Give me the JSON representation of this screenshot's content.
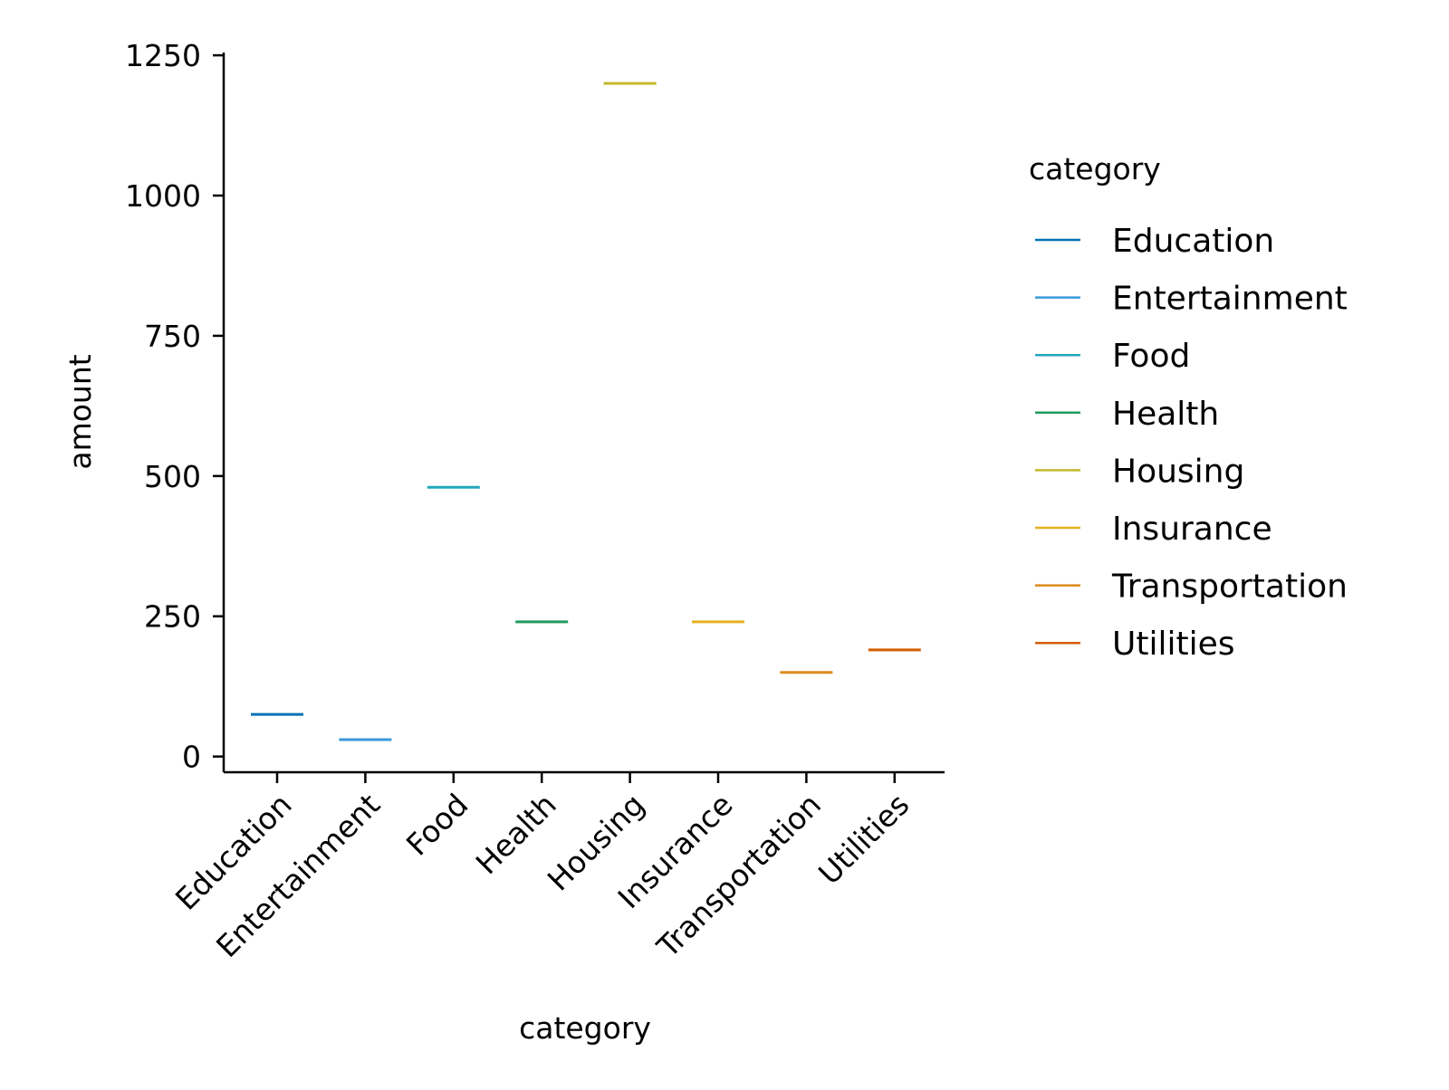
{
  "chart_data": {
    "type": "line",
    "title": "",
    "xlabel": "category",
    "ylabel": "amount",
    "categories": [
      "Education",
      "Entertainment",
      "Food",
      "Health",
      "Housing",
      "Insurance",
      "Transportation",
      "Utilities"
    ],
    "values": [
      75,
      30,
      480,
      240,
      1200,
      240,
      150,
      190
    ],
    "colors": [
      "#0072b2",
      "#3a9ad9",
      "#22a7bd",
      "#229a5e",
      "#c4b82c",
      "#e6b020",
      "#dd8a1e",
      "#d55e00"
    ],
    "ylim": [
      -28,
      1255
    ],
    "yticks": [
      0,
      250,
      500,
      750,
      1000,
      1250
    ],
    "grid": false,
    "legend": {
      "title": "category",
      "placement": "right",
      "entries": [
        "Education",
        "Entertainment",
        "Food",
        "Health",
        "Housing",
        "Insurance",
        "Transportation",
        "Utilities"
      ]
    }
  }
}
